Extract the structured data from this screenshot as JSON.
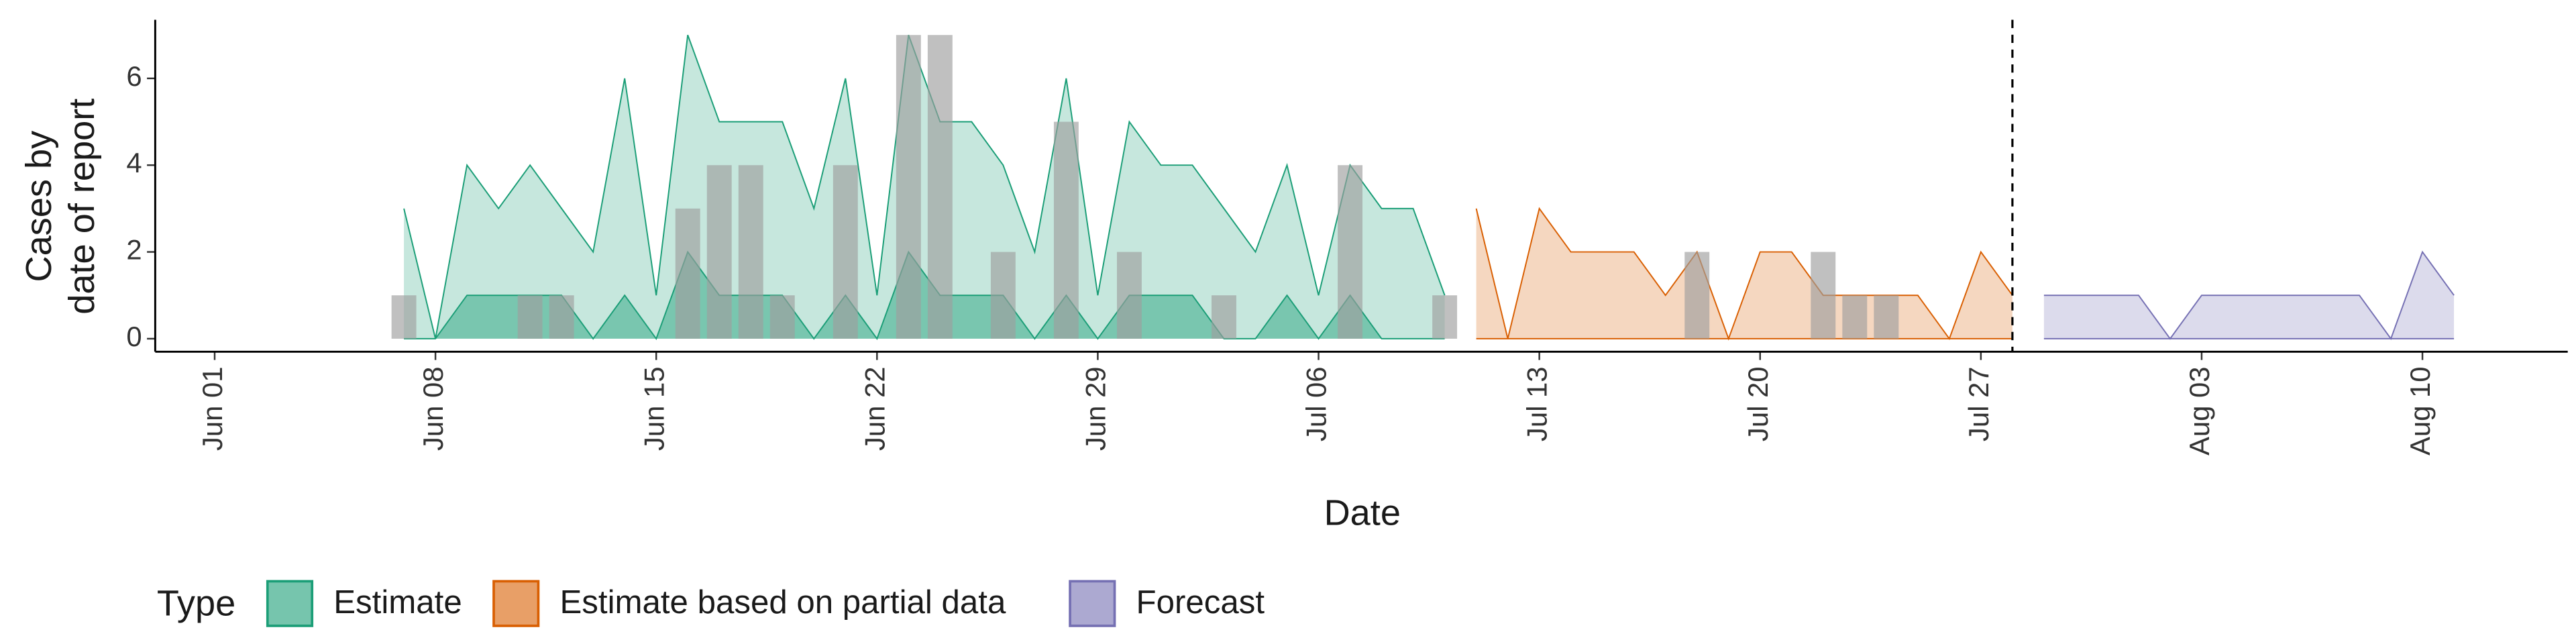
{
  "chart_data": {
    "type": "area",
    "x_label": "Date",
    "y_label": [
      "Cases by",
      "date of report"
    ],
    "legend_title": "Type",
    "categories": [
      "Jun 01",
      null,
      null,
      null,
      null,
      null,
      null,
      "Jun 08",
      null,
      null,
      null,
      null,
      null,
      null,
      "Jun 15",
      null,
      null,
      null,
      null,
      null,
      null,
      "Jun 22",
      null,
      null,
      null,
      null,
      null,
      null,
      "Jun 29",
      null,
      null,
      null,
      null,
      null,
      null,
      "Jul 06",
      null,
      null,
      null,
      null,
      null,
      null,
      "Jul 13",
      null,
      null,
      null,
      null,
      null,
      null,
      "Jul 20",
      null,
      null,
      null,
      null,
      null,
      null,
      "Jul 27",
      null,
      null,
      null,
      null,
      null,
      null,
      "Aug 03",
      null,
      null,
      null,
      null,
      null,
      null,
      "Aug 10",
      null
    ],
    "ylim": [
      -0.3,
      7.35
    ],
    "yticks": [
      0,
      2,
      4,
      6
    ],
    "reported": {
      "color": "#9e9e9e",
      "values": [
        null,
        null,
        null,
        null,
        null,
        null,
        1,
        null,
        null,
        null,
        1,
        1,
        null,
        null,
        null,
        3,
        4,
        4,
        1,
        null,
        4,
        null,
        7,
        7,
        null,
        2,
        null,
        5,
        null,
        2,
        null,
        null,
        1,
        null,
        null,
        null,
        4,
        null,
        null,
        1,
        null,
        null,
        null,
        null,
        null,
        null,
        null,
        2,
        null,
        null,
        null,
        2,
        1,
        1,
        null,
        null,
        null,
        null,
        null,
        null,
        null,
        null,
        null,
        null,
        null,
        null,
        null,
        null,
        null,
        null,
        null,
        null
      ]
    },
    "series": [
      {
        "name": "Estimate",
        "color": "#1b9e77",
        "values": [
          null,
          null,
          null,
          null,
          null,
          null,
          3,
          0,
          4,
          3,
          4,
          3,
          2,
          6,
          1,
          7,
          5,
          5,
          5,
          3,
          6,
          1,
          7,
          5,
          5,
          4,
          2,
          6,
          1,
          5,
          4,
          4,
          3,
          2,
          4,
          1,
          4,
          3,
          3,
          1,
          null,
          null,
          null,
          null,
          null,
          null,
          null,
          null,
          null,
          null,
          null,
          null,
          null,
          null,
          null,
          null,
          null,
          null,
          null,
          null,
          null,
          null,
          null,
          null,
          null,
          null,
          null,
          null,
          null,
          null,
          null,
          null
        ],
        "inner_values": [
          null,
          null,
          null,
          null,
          null,
          null,
          0,
          0,
          1,
          1,
          1,
          1,
          0,
          1,
          0,
          2,
          1,
          1,
          1,
          0,
          1,
          0,
          2,
          1,
          1,
          1,
          0,
          1,
          0,
          1,
          1,
          1,
          0,
          0,
          1,
          0,
          1,
          0,
          0,
          0,
          null,
          null,
          null,
          null,
          null,
          null,
          null,
          null,
          null,
          null,
          null,
          null,
          null,
          null,
          null,
          null,
          null,
          null,
          null,
          null,
          null,
          null,
          null,
          null,
          null,
          null,
          null,
          null,
          null,
          null,
          null,
          null
        ]
      },
      {
        "name": "Estimate based on partial data",
        "color": "#d95f02",
        "values": [
          null,
          null,
          null,
          null,
          null,
          null,
          null,
          null,
          null,
          null,
          null,
          null,
          null,
          null,
          null,
          null,
          null,
          null,
          null,
          null,
          null,
          null,
          null,
          null,
          null,
          null,
          null,
          null,
          null,
          null,
          null,
          null,
          null,
          null,
          null,
          null,
          null,
          null,
          null,
          null,
          3,
          0,
          3,
          2,
          2,
          2,
          1,
          2,
          0,
          2,
          2,
          1,
          1,
          1,
          1,
          0,
          2,
          1,
          null,
          null,
          null,
          null,
          null,
          null,
          null,
          null,
          null,
          null,
          null,
          null,
          null,
          null
        ],
        "inner_values": [
          null,
          null,
          null,
          null,
          null,
          null,
          null,
          null,
          null,
          null,
          null,
          null,
          null,
          null,
          null,
          null,
          null,
          null,
          null,
          null,
          null,
          null,
          null,
          null,
          null,
          null,
          null,
          null,
          null,
          null,
          null,
          null,
          null,
          null,
          null,
          null,
          null,
          null,
          null,
          null,
          0,
          0,
          0,
          0,
          0,
          0,
          0,
          0,
          0,
          0,
          0,
          0,
          0,
          0,
          0,
          0,
          0,
          0,
          null,
          null,
          null,
          null,
          null,
          null,
          null,
          null,
          null,
          null,
          null,
          null,
          null,
          null
        ]
      },
      {
        "name": "Forecast",
        "color": "#7570b3",
        "values": [
          null,
          null,
          null,
          null,
          null,
          null,
          null,
          null,
          null,
          null,
          null,
          null,
          null,
          null,
          null,
          null,
          null,
          null,
          null,
          null,
          null,
          null,
          null,
          null,
          null,
          null,
          null,
          null,
          null,
          null,
          null,
          null,
          null,
          null,
          null,
          null,
          null,
          null,
          null,
          null,
          null,
          null,
          null,
          null,
          null,
          null,
          null,
          null,
          null,
          null,
          null,
          null,
          null,
          null,
          null,
          null,
          null,
          null,
          1,
          1,
          1,
          1,
          0,
          1,
          1,
          1,
          1,
          1,
          1,
          0,
          2,
          1
        ],
        "inner_values": [
          null,
          null,
          null,
          null,
          null,
          null,
          null,
          null,
          null,
          null,
          null,
          null,
          null,
          null,
          null,
          null,
          null,
          null,
          null,
          null,
          null,
          null,
          null,
          null,
          null,
          null,
          null,
          null,
          null,
          null,
          null,
          null,
          null,
          null,
          null,
          null,
          null,
          null,
          null,
          null,
          null,
          null,
          null,
          null,
          null,
          null,
          null,
          null,
          null,
          null,
          null,
          null,
          null,
          null,
          null,
          null,
          null,
          null,
          0,
          0,
          0,
          0,
          0,
          0,
          0,
          0,
          0,
          0,
          0,
          0,
          0,
          0
        ]
      }
    ]
  }
}
